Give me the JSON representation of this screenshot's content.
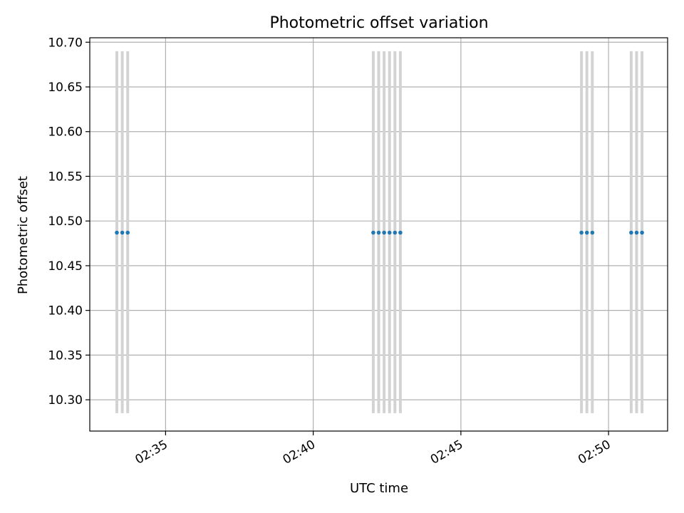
{
  "chart_data": {
    "type": "scatter",
    "title": "Photometric offset variation",
    "xlabel": "UTC time",
    "ylabel": "Photometric offset",
    "x_axis": "time",
    "xlim": [
      "02:32:26",
      "02:52:00"
    ],
    "ylim": [
      10.265,
      10.705
    ],
    "x_ticks": [
      "02:35",
      "02:40",
      "02:45",
      "02:50"
    ],
    "y_ticks": [
      "10.30",
      "10.35",
      "10.40",
      "10.45",
      "10.50",
      "10.55",
      "10.60",
      "10.65",
      "10.70"
    ],
    "grid": true,
    "error_bar_range": [
      10.285,
      10.69
    ],
    "marker_color": "#1f77b4",
    "error_bar_color": "#d3d3d3",
    "grid_color": "#b0b0b0",
    "points": [
      {
        "x": "02:33:21",
        "y": 10.487
      },
      {
        "x": "02:33:32",
        "y": 10.487
      },
      {
        "x": "02:33:43",
        "y": 10.487
      },
      {
        "x": "02:42:02",
        "y": 10.487
      },
      {
        "x": "02:42:13",
        "y": 10.487
      },
      {
        "x": "02:42:24",
        "y": 10.487
      },
      {
        "x": "02:42:35",
        "y": 10.487
      },
      {
        "x": "02:42:46",
        "y": 10.487
      },
      {
        "x": "02:42:57",
        "y": 10.487
      },
      {
        "x": "02:49:05",
        "y": 10.487
      },
      {
        "x": "02:49:16",
        "y": 10.487
      },
      {
        "x": "02:49:27",
        "y": 10.487
      },
      {
        "x": "02:50:46",
        "y": 10.487
      },
      {
        "x": "02:50:57",
        "y": 10.487
      },
      {
        "x": "02:51:08",
        "y": 10.487
      }
    ]
  }
}
